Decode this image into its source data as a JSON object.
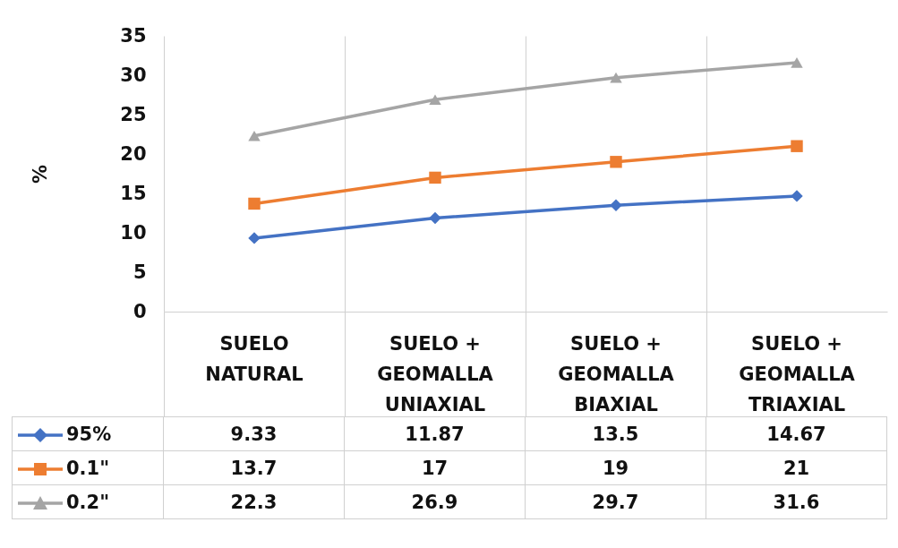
{
  "chart_data": {
    "type": "line",
    "ylabel": "%",
    "categories": [
      "SUELO NATURAL",
      "SUELO + GEOMALLA UNIAXIAL",
      "SUELO + GEOMALLA BIAXIAL",
      "SUELO + GEOMALLA TRIAXIAL"
    ],
    "series": [
      {
        "name": "95%",
        "color": "#4472c4",
        "marker": "diamond",
        "values": [
          9.33,
          11.87,
          13.5,
          14.67
        ]
      },
      {
        "name": "0.1\"",
        "color": "#ed7d31",
        "marker": "square",
        "values": [
          13.7,
          17,
          19,
          21
        ]
      },
      {
        "name": "0.2\"",
        "color": "#a5a5a5",
        "marker": "triangle",
        "values": [
          22.3,
          26.9,
          29.7,
          31.6
        ]
      }
    ],
    "ylim": [
      0,
      35
    ],
    "yticks": [
      0,
      5,
      10,
      15,
      20,
      25,
      30,
      35
    ],
    "grid": "x",
    "legend": "bottom",
    "data_labels": true
  }
}
